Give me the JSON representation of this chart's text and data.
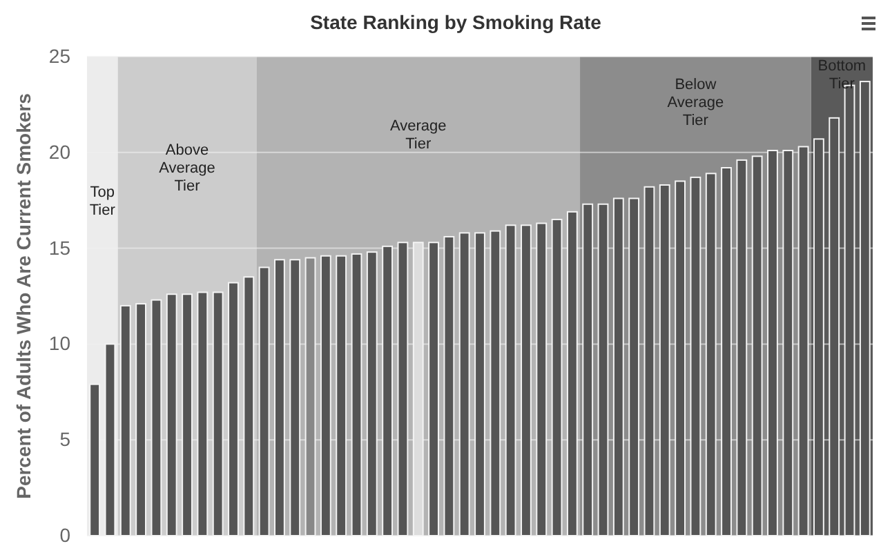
{
  "chart_data": {
    "type": "bar",
    "title": "State Ranking by Smoking Rate",
    "ylabel": "Percent of Adults Who Are Current Smokers",
    "categories": [
      null,
      null,
      null,
      null,
      null,
      null,
      null,
      null,
      null,
      null,
      null,
      null,
      null,
      null,
      null,
      null,
      null,
      null,
      null,
      null,
      null,
      null,
      null,
      null,
      null,
      null,
      null,
      null,
      null,
      null,
      null,
      null,
      null,
      null,
      null,
      null,
      null,
      null,
      null,
      null,
      null,
      null,
      null,
      null,
      null,
      null,
      null,
      null,
      null,
      null,
      null
    ],
    "values": [
      7.9,
      10.0,
      12.0,
      12.1,
      12.3,
      12.6,
      12.6,
      12.7,
      12.7,
      13.2,
      13.5,
      14.0,
      14.4,
      14.4,
      14.5,
      14.6,
      14.6,
      14.7,
      14.8,
      15.1,
      15.3,
      15.3,
      15.3,
      15.6,
      15.8,
      15.8,
      15.9,
      16.2,
      16.2,
      16.3,
      16.5,
      16.9,
      17.3,
      17.3,
      17.6,
      17.6,
      18.2,
      18.3,
      18.5,
      18.7,
      18.9,
      19.2,
      19.6,
      19.8,
      20.1,
      20.1,
      20.3,
      20.7,
      21.8,
      23.5,
      23.7
    ],
    "colors": [
      "#555555",
      "#555555",
      "#555555",
      "#555555",
      "#555555",
      "#555555",
      "#555555",
      "#555555",
      "#555555",
      "#555555",
      "#555555",
      "#555555",
      "#555555",
      "#555555",
      "#888888",
      "#555555",
      "#555555",
      "#555555",
      "#555555",
      "#555555",
      "#555555",
      "#dddddd",
      "#555555",
      "#555555",
      "#555555",
      "#555555",
      "#555555",
      "#555555",
      "#555555",
      "#555555",
      "#555555",
      "#555555",
      "#555555",
      "#555555",
      "#555555",
      "#555555",
      "#555555",
      "#555555",
      "#555555",
      "#555555",
      "#555555",
      "#555555",
      "#555555",
      "#555555",
      "#555555",
      "#555555",
      "#555555",
      "#555555",
      "#555555",
      "#555555",
      "#555555"
    ],
    "ylim": [
      0,
      25
    ],
    "yticks": [
      0,
      5,
      10,
      15,
      20,
      25
    ],
    "grid": "y",
    "annotations": [
      "Top\nTier",
      "Above\nAverage\nTier",
      "Average\nTier",
      "Below\nAverage\nTier",
      "Bottom\nTier"
    ]
  }
}
